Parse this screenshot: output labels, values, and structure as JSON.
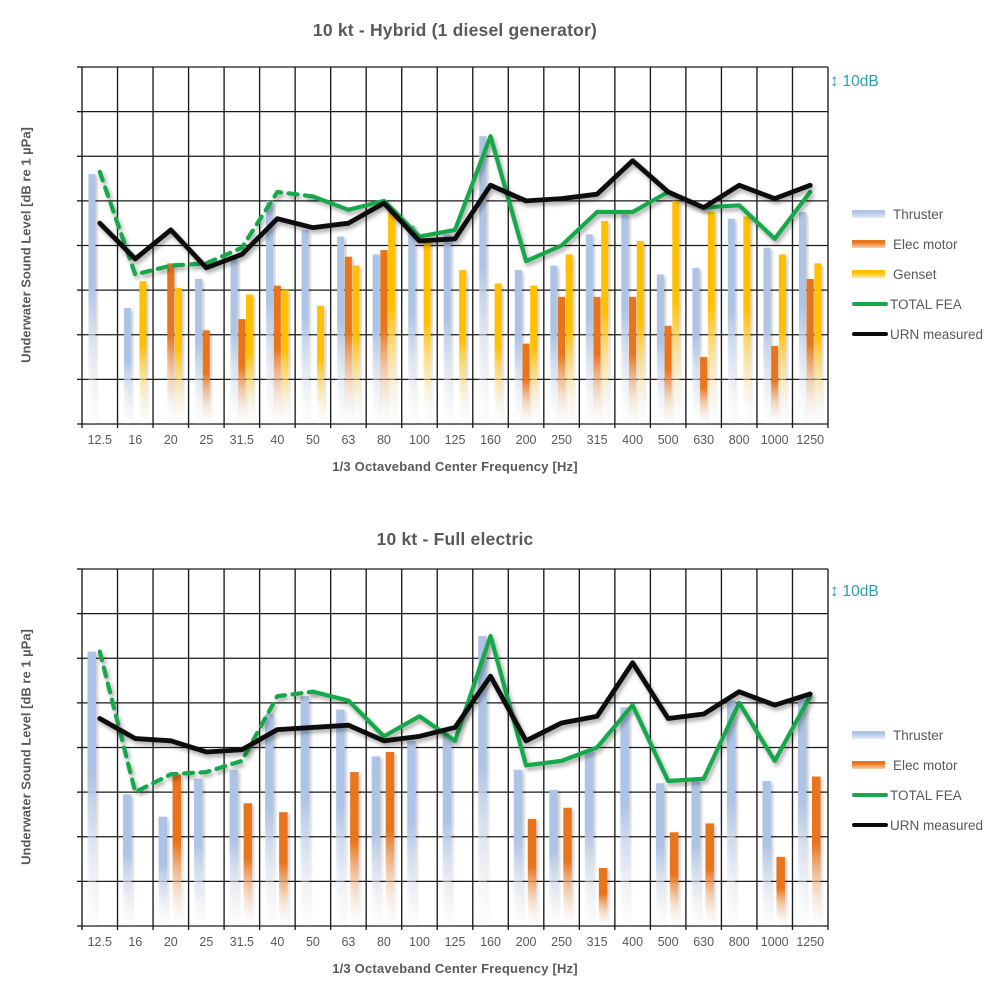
{
  "scale_badge": {
    "arrow": "↕",
    "label": "10dB",
    "color": "#2E9DAF"
  },
  "palette": {
    "thruster_bar": "#AEC4E6",
    "elec_motor_bar": "#E8751A",
    "genset_bar": "#FFC000",
    "total_fea_line": "#17A84B",
    "urn_measured_line": "#0D0D0D",
    "text_gray": "#595959",
    "grid": "#1B1B1B",
    "scale_badge_teal": "#2E9DAF"
  },
  "chart_data": [
    {
      "type": "bar",
      "title": "10 kt - Hybrid (1 diesel generator)",
      "xlabel": "1/3 Octaveband Center Frequency [Hz]",
      "ylabel": "Underwater Sound Level [dB re 1 µPa]",
      "categories": [
        "12.5",
        "16",
        "20",
        "25",
        "31.5",
        "40",
        "50",
        "63",
        "80",
        "100",
        "125",
        "160",
        "200",
        "250",
        "315",
        "400",
        "500",
        "630",
        "800",
        "1000",
        "1250"
      ],
      "y_axis": {
        "ylim": [
          0,
          80
        ],
        "gridline_step_dB": 10,
        "numeric_tick_labels_shown": false,
        "scale_indicator": "10dB"
      },
      "legend_position": "right",
      "grid": true,
      "series": [
        {
          "name": "Thruster",
          "type": "bar",
          "color": "#AEC4E6",
          "values": [
            56,
            26,
            null,
            32.5,
            37,
            50,
            43.5,
            42,
            38,
            44.5,
            42.5,
            64.5,
            34.5,
            35.5,
            42.5,
            47,
            33.5,
            35,
            46,
            39.5,
            47.5
          ]
        },
        {
          "name": "Elec motor",
          "type": "bar",
          "color": "#E8751A",
          "values": [
            null,
            null,
            36,
            21,
            23.5,
            31,
            null,
            37.5,
            39,
            null,
            null,
            null,
            18,
            28.5,
            28.5,
            28.5,
            22,
            15,
            null,
            17.5,
            32.5
          ]
        },
        {
          "name": "Genset",
          "type": "bar",
          "color": "#FFC000",
          "values": [
            null,
            32,
            30.5,
            null,
            29,
            30,
            26.5,
            35.5,
            47.5,
            41.5,
            34.5,
            31.5,
            31,
            38,
            45.5,
            41,
            50,
            47.5,
            46.5,
            38,
            36
          ]
        },
        {
          "name": "TOTAL FEA",
          "type": "line",
          "color": "#17A84B",
          "dashed_through_category": "50",
          "values": [
            56.5,
            33.5,
            35.5,
            36,
            39.5,
            52,
            51,
            48,
            50,
            42,
            43.5,
            64.5,
            36.5,
            40,
            47.5,
            47.5,
            52,
            48.5,
            49,
            41.5,
            52
          ]
        },
        {
          "name": "URN measured",
          "type": "line",
          "color": "#0D0D0D",
          "values": [
            45,
            37,
            43.5,
            35,
            38,
            46,
            44,
            45,
            49.5,
            41,
            41.5,
            53.5,
            50,
            50.5,
            51.5,
            59,
            52,
            48.5,
            53.5,
            50.5,
            53.5
          ]
        }
      ]
    },
    {
      "type": "bar",
      "title": "10 kt - Full electric",
      "xlabel": "1/3 Octaveband Center Frequency [Hz]",
      "ylabel": "Underwater Sound Level [dB re 1 µPa]",
      "categories": [
        "12.5",
        "16",
        "20",
        "25",
        "31.5",
        "40",
        "50",
        "63",
        "80",
        "100",
        "125",
        "160",
        "200",
        "250",
        "315",
        "400",
        "500",
        "630",
        "800",
        "1000",
        "1250"
      ],
      "y_axis": {
        "ylim": [
          0,
          80
        ],
        "gridline_step_dB": 10,
        "numeric_tick_labels_shown": false,
        "scale_indicator": "10dB"
      },
      "legend_position": "right",
      "grid": true,
      "series": [
        {
          "name": "Thruster",
          "type": "bar",
          "color": "#AEC4E6",
          "values": [
            61.5,
            29.5,
            24.5,
            33,
            35,
            47.5,
            51.5,
            48.5,
            38,
            41.5,
            42.5,
            65,
            35,
            30.5,
            39.5,
            49,
            32,
            32.5,
            50.5,
            32.5,
            51
          ]
        },
        {
          "name": "Elec motor",
          "type": "bar",
          "color": "#E8751A",
          "values": [
            null,
            null,
            34,
            null,
            27.5,
            25.5,
            null,
            34.5,
            39,
            null,
            null,
            null,
            24,
            26.5,
            13,
            null,
            21,
            23,
            null,
            15.5,
            33.5
          ]
        },
        {
          "name": "TOTAL FEA",
          "type": "line",
          "color": "#17A84B",
          "dashed_through_category": "50",
          "values": [
            61.5,
            30,
            34,
            34.5,
            37,
            51.5,
            52.5,
            50.5,
            42.5,
            47,
            41.5,
            65,
            36,
            37,
            40,
            49.5,
            32.5,
            33,
            50,
            37,
            51.5
          ]
        },
        {
          "name": "URN measured",
          "type": "line",
          "color": "#0D0D0D",
          "values": [
            46.5,
            42,
            41.5,
            39,
            39.5,
            44,
            44.5,
            45,
            41.5,
            42.5,
            44.5,
            56,
            41.5,
            45.5,
            47,
            59,
            46.5,
            47.5,
            52.5,
            49.5,
            52
          ]
        }
      ]
    }
  ]
}
